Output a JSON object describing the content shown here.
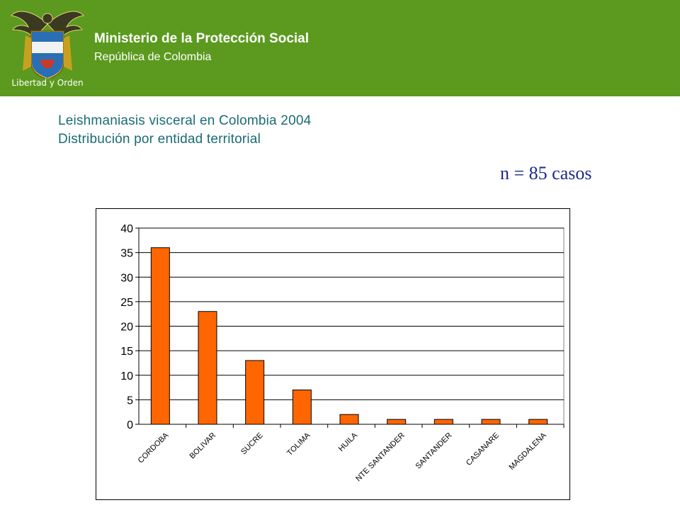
{
  "header": {
    "logo_motto": "Libertad y Orden",
    "ministry": "Ministerio de la Protección Social",
    "republic": "República de Colombia"
  },
  "main": {
    "title_line1": "Leishmaniasis visceral en Colombia 2004",
    "title_line2": "Distribución por entidad territorial",
    "count_label": "n = 85 casos"
  },
  "colors": {
    "header_green": "#5b9a1e",
    "bar_fill": "#ff6600",
    "title_text": "#1a6b74",
    "count_text": "#1f2a8a"
  },
  "chart_data": {
    "type": "bar",
    "categories": [
      "CORDOBA",
      "BOLIVAR",
      "SUCRE",
      "TOLIMA",
      "HUILA",
      "NTE SANTANDER",
      "SANTANDER",
      "CASANARE",
      "MAGDALENA"
    ],
    "values": [
      36,
      23,
      13,
      7,
      2,
      1,
      1,
      1,
      1
    ],
    "ylim": [
      0,
      40
    ],
    "yticks": [
      0,
      5,
      10,
      15,
      20,
      25,
      30,
      35,
      40
    ],
    "grid": true,
    "legend": "none",
    "title": "",
    "xlabel": "",
    "ylabel": ""
  }
}
